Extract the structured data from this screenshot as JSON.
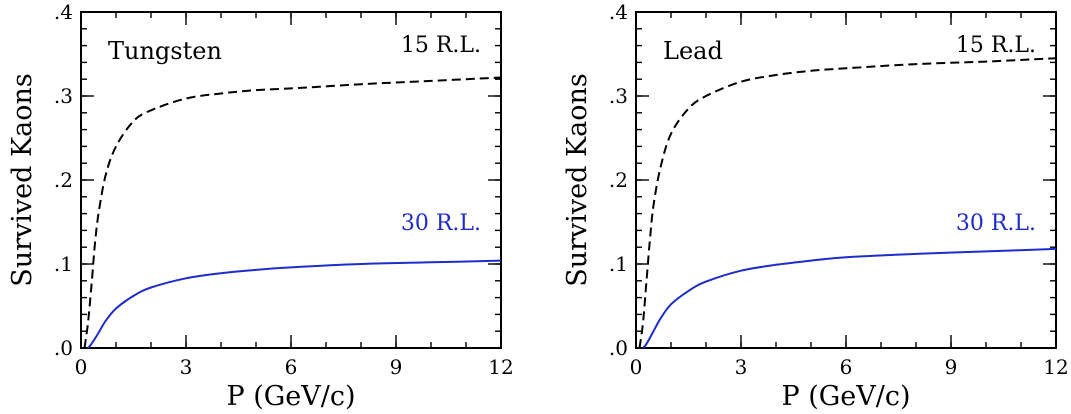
{
  "chart_data": [
    {
      "type": "line",
      "panel_label": "Tungsten",
      "xlabel": "P (GeV/c)",
      "ylabel": "Survived Kaons",
      "xlim": [
        0,
        12
      ],
      "ylim": [
        0,
        0.4
      ],
      "xticks": [
        0,
        3,
        6,
        9,
        12
      ],
      "xtick_labels": [
        "0",
        "3",
        "6",
        "9",
        "12"
      ],
      "yticks": [
        0,
        0.1,
        0.2,
        0.3,
        0.4
      ],
      "ytick_labels": [
        ".0",
        ".1",
        ".2",
        ".3",
        ".4"
      ],
      "grid": false,
      "series": [
        {
          "name": "15 R.L.",
          "color": "#000000",
          "dash": "dashed",
          "x": [
            0.1,
            0.2,
            0.3,
            0.4,
            0.5,
            0.7,
            1.0,
            1.5,
            2.0,
            3.0,
            4.0,
            5.0,
            6.0,
            8.0,
            10.0,
            12.0
          ],
          "y": [
            0.0,
            0.03,
            0.075,
            0.125,
            0.16,
            0.205,
            0.24,
            0.27,
            0.283,
            0.297,
            0.303,
            0.307,
            0.309,
            0.314,
            0.318,
            0.322
          ]
        },
        {
          "name": "30 R.L.",
          "color": "#1f2ccc",
          "dash": "solid",
          "x": [
            0.2,
            0.3,
            0.5,
            0.7,
            1.0,
            1.5,
            2.0,
            3.0,
            4.0,
            5.0,
            6.0,
            8.0,
            10.0,
            12.0
          ],
          "y": [
            0.0,
            0.005,
            0.018,
            0.032,
            0.047,
            0.062,
            0.072,
            0.083,
            0.089,
            0.093,
            0.096,
            0.1,
            0.102,
            0.104
          ]
        }
      ]
    },
    {
      "type": "line",
      "panel_label": "Lead",
      "xlabel": "P (GeV/c)",
      "ylabel": "Survived Kaons",
      "xlim": [
        0,
        12
      ],
      "ylim": [
        0,
        0.4
      ],
      "xticks": [
        0,
        3,
        6,
        9,
        12
      ],
      "xtick_labels": [
        "0",
        "3",
        "6",
        "9",
        "12"
      ],
      "yticks": [
        0,
        0.1,
        0.2,
        0.3,
        0.4
      ],
      "ytick_labels": [
        ".0",
        ".1",
        ".2",
        ".3",
        ".4"
      ],
      "grid": false,
      "series": [
        {
          "name": "15 R.L.",
          "color": "#000000",
          "dash": "dashed",
          "x": [
            0.1,
            0.2,
            0.3,
            0.4,
            0.5,
            0.7,
            1.0,
            1.5,
            2.0,
            3.0,
            4.0,
            5.0,
            6.0,
            8.0,
            10.0,
            12.0
          ],
          "y": [
            0.0,
            0.03,
            0.08,
            0.13,
            0.17,
            0.215,
            0.255,
            0.285,
            0.3,
            0.317,
            0.325,
            0.33,
            0.333,
            0.338,
            0.341,
            0.345
          ]
        },
        {
          "name": "30 R.L.",
          "color": "#1f2ccc",
          "dash": "solid",
          "x": [
            0.2,
            0.3,
            0.5,
            0.7,
            1.0,
            1.5,
            2.0,
            3.0,
            4.0,
            5.0,
            6.0,
            8.0,
            10.0,
            12.0
          ],
          "y": [
            0.0,
            0.005,
            0.02,
            0.035,
            0.052,
            0.068,
            0.079,
            0.092,
            0.099,
            0.104,
            0.108,
            0.112,
            0.115,
            0.118
          ]
        }
      ]
    }
  ]
}
